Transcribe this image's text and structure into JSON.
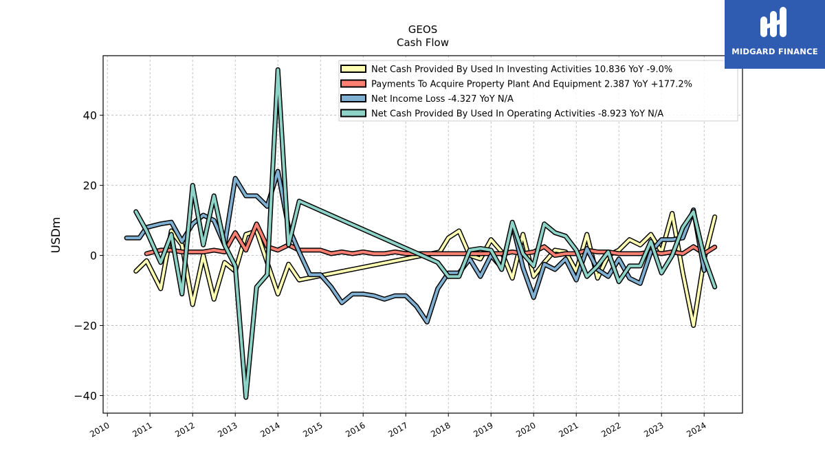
{
  "brand": {
    "name": "MIDGARD FINANCE"
  },
  "chart_data": {
    "type": "line",
    "title": "GEOS",
    "subtitle": "Cash Flow",
    "xlabel": "",
    "ylabel": "USDm",
    "xlim": [
      2009.9,
      2024.9
    ],
    "ylim": [
      -45,
      57
    ],
    "x_ticks": [
      "2010",
      "2011",
      "2012",
      "2013",
      "2014",
      "2015",
      "2016",
      "2017",
      "2018",
      "2019",
      "2020",
      "2021",
      "2022",
      "2023",
      "2024"
    ],
    "y_ticks": [
      -40,
      -20,
      0,
      20,
      40
    ],
    "y_tick_labels": [
      "−40",
      "−20",
      "0",
      "20",
      "40"
    ],
    "grid": true,
    "legend_position": "top-right",
    "series": [
      {
        "name": "Net Cash Provided By Used In Investing Activities  10.836 YoY -9.0%",
        "color": "#ffffb3",
        "points": [
          [
            2010.67,
            -4.5
          ],
          [
            2010.92,
            -1.5
          ],
          [
            2011.25,
            -9.5
          ],
          [
            2011.5,
            7
          ],
          [
            2011.75,
            3
          ],
          [
            2012.0,
            -14
          ],
          [
            2012.25,
            0
          ],
          [
            2012.5,
            -12.5
          ],
          [
            2012.75,
            -2
          ],
          [
            2013.0,
            -4.5
          ],
          [
            2013.25,
            6
          ],
          [
            2013.5,
            7
          ],
          [
            2013.75,
            -2
          ],
          [
            2014.0,
            -11
          ],
          [
            2014.25,
            -2.5
          ],
          [
            2014.5,
            -7
          ],
          [
            2017.8,
            1
          ],
          [
            2018.0,
            5
          ],
          [
            2018.25,
            7
          ],
          [
            2018.5,
            0
          ],
          [
            2018.75,
            -1
          ],
          [
            2019.0,
            4.5
          ],
          [
            2019.25,
            1
          ],
          [
            2019.5,
            -6.5
          ],
          [
            2019.75,
            6
          ],
          [
            2020.0,
            -6
          ],
          [
            2020.25,
            -2
          ],
          [
            2020.5,
            1.5
          ],
          [
            2020.75,
            1
          ],
          [
            2021.0,
            -4.5
          ],
          [
            2021.25,
            6
          ],
          [
            2021.5,
            -6.5
          ],
          [
            2021.75,
            0
          ],
          [
            2022.0,
            1.5
          ],
          [
            2022.25,
            4.5
          ],
          [
            2022.5,
            3
          ],
          [
            2022.75,
            6
          ],
          [
            2023.0,
            1
          ],
          [
            2023.25,
            12
          ],
          [
            2023.5,
            -5
          ],
          [
            2023.75,
            -20
          ],
          [
            2024.0,
            -1
          ],
          [
            2024.25,
            11
          ]
        ]
      },
      {
        "name": "Payments To Acquire Property Plant And Equipment  2.387 YoY +177.2%",
        "color": "#fb8072",
        "points": [
          [
            2010.92,
            0.5
          ],
          [
            2011.25,
            1.5
          ],
          [
            2011.5,
            1.5
          ],
          [
            2011.75,
            1
          ],
          [
            2012.0,
            1
          ],
          [
            2012.25,
            1
          ],
          [
            2012.5,
            1.5
          ],
          [
            2012.75,
            1
          ],
          [
            2013.0,
            6.5
          ],
          [
            2013.25,
            1.5
          ],
          [
            2013.5,
            9
          ],
          [
            2013.75,
            2.5
          ],
          [
            2014.0,
            1.5
          ],
          [
            2014.25,
            3
          ],
          [
            2014.5,
            1.5
          ],
          [
            2015.0,
            1.5
          ],
          [
            2015.25,
            0.5
          ],
          [
            2015.5,
            1
          ],
          [
            2015.75,
            0.5
          ],
          [
            2016.0,
            1
          ],
          [
            2016.25,
            0.5
          ],
          [
            2016.5,
            0.5
          ],
          [
            2016.75,
            1
          ],
          [
            2017.0,
            0.5
          ],
          [
            2017.25,
            0.5
          ],
          [
            2017.5,
            0.5
          ],
          [
            2017.75,
            0.5
          ],
          [
            2018.0,
            0.5
          ],
          [
            2018.25,
            0.5
          ],
          [
            2018.5,
            0.5
          ],
          [
            2018.75,
            0.5
          ],
          [
            2019.0,
            0.5
          ],
          [
            2019.25,
            0.5
          ],
          [
            2019.5,
            1
          ],
          [
            2019.75,
            0.5
          ],
          [
            2020.0,
            1
          ],
          [
            2020.25,
            2.5
          ],
          [
            2020.5,
            0
          ],
          [
            2020.75,
            0.5
          ],
          [
            2021.0,
            0.5
          ],
          [
            2021.25,
            1.5
          ],
          [
            2021.5,
            1
          ],
          [
            2021.75,
            1
          ],
          [
            2022.0,
            0.5
          ],
          [
            2022.25,
            0.5
          ],
          [
            2022.5,
            0.5
          ],
          [
            2022.75,
            1
          ],
          [
            2023.0,
            0.5
          ],
          [
            2023.25,
            1
          ],
          [
            2023.5,
            0.5
          ],
          [
            2023.75,
            2.5
          ],
          [
            2024.0,
            0.5
          ],
          [
            2024.25,
            2.4
          ]
        ]
      },
      {
        "name": "Net Income Loss  -4.327 YoY N/A",
        "color": "#80b1d3",
        "points": [
          [
            2010.45,
            5
          ],
          [
            2010.75,
            5
          ],
          [
            2010.92,
            8
          ],
          [
            2011.25,
            9
          ],
          [
            2011.5,
            9.5
          ],
          [
            2011.75,
            4
          ],
          [
            2012.0,
            9
          ],
          [
            2012.25,
            11.5
          ],
          [
            2012.5,
            10
          ],
          [
            2012.75,
            3
          ],
          [
            2013.0,
            22
          ],
          [
            2013.25,
            17
          ],
          [
            2013.5,
            17
          ],
          [
            2013.75,
            14
          ],
          [
            2014.0,
            24
          ],
          [
            2014.25,
            8
          ],
          [
            2014.5,
            1
          ],
          [
            2014.75,
            -5.5
          ],
          [
            2015.0,
            -5.5
          ],
          [
            2015.25,
            -9
          ],
          [
            2015.5,
            -13.5
          ],
          [
            2015.75,
            -11
          ],
          [
            2016.0,
            -11
          ],
          [
            2016.25,
            -11.5
          ],
          [
            2016.5,
            -12.5
          ],
          [
            2016.75,
            -11.5
          ],
          [
            2017.0,
            -11.5
          ],
          [
            2017.25,
            -14.5
          ],
          [
            2017.5,
            -19
          ],
          [
            2017.75,
            -9.5
          ],
          [
            2018.0,
            -5
          ],
          [
            2018.25,
            -5
          ],
          [
            2018.5,
            -1
          ],
          [
            2018.75,
            -6
          ],
          [
            2019.0,
            0
          ],
          [
            2019.25,
            -3.5
          ],
          [
            2019.5,
            9
          ],
          [
            2019.75,
            -3.5
          ],
          [
            2020.0,
            -12
          ],
          [
            2020.25,
            -2.5
          ],
          [
            2020.5,
            -4
          ],
          [
            2020.75,
            -1
          ],
          [
            2021.0,
            -7
          ],
          [
            2021.25,
            2
          ],
          [
            2021.5,
            -4
          ],
          [
            2021.75,
            -6
          ],
          [
            2022.0,
            -1
          ],
          [
            2022.25,
            -6.5
          ],
          [
            2022.5,
            -8
          ],
          [
            2022.75,
            1
          ],
          [
            2023.0,
            4.5
          ],
          [
            2023.25,
            4.5
          ],
          [
            2023.5,
            5
          ],
          [
            2023.75,
            13
          ],
          [
            2024.0,
            -4.3
          ]
        ]
      },
      {
        "name": "Net Cash Provided By Used In Operating Activities  -8.923 YoY N/A",
        "color": "#8dd3c7",
        "points": [
          [
            2010.67,
            12.5
          ],
          [
            2010.92,
            7
          ],
          [
            2011.25,
            -2
          ],
          [
            2011.5,
            6
          ],
          [
            2011.75,
            -11
          ],
          [
            2012.0,
            20
          ],
          [
            2012.25,
            3
          ],
          [
            2012.5,
            17
          ],
          [
            2012.75,
            3
          ],
          [
            2013.0,
            -3
          ],
          [
            2013.25,
            -40.5
          ],
          [
            2013.5,
            -9
          ],
          [
            2013.75,
            -5.5
          ],
          [
            2014.0,
            53
          ],
          [
            2014.25,
            3
          ],
          [
            2014.5,
            15.5
          ],
          [
            2017.75,
            -2
          ],
          [
            2018.0,
            -6
          ],
          [
            2018.25,
            -6
          ],
          [
            2018.5,
            1.5
          ],
          [
            2018.75,
            2
          ],
          [
            2019.0,
            1.5
          ],
          [
            2019.25,
            -4
          ],
          [
            2019.5,
            9.5
          ],
          [
            2019.75,
            0.5
          ],
          [
            2020.0,
            -3
          ],
          [
            2020.25,
            9
          ],
          [
            2020.5,
            6.5
          ],
          [
            2020.75,
            5.5
          ],
          [
            2021.0,
            1.5
          ],
          [
            2021.25,
            -6
          ],
          [
            2021.5,
            -3
          ],
          [
            2021.75,
            1
          ],
          [
            2022.0,
            -7.5
          ],
          [
            2022.25,
            -3
          ],
          [
            2022.5,
            -3
          ],
          [
            2022.75,
            4
          ],
          [
            2023.0,
            -5
          ],
          [
            2023.25,
            0
          ],
          [
            2023.5,
            8
          ],
          [
            2023.75,
            12.5
          ],
          [
            2024.0,
            -0.5
          ],
          [
            2024.25,
            -9
          ]
        ]
      }
    ]
  }
}
